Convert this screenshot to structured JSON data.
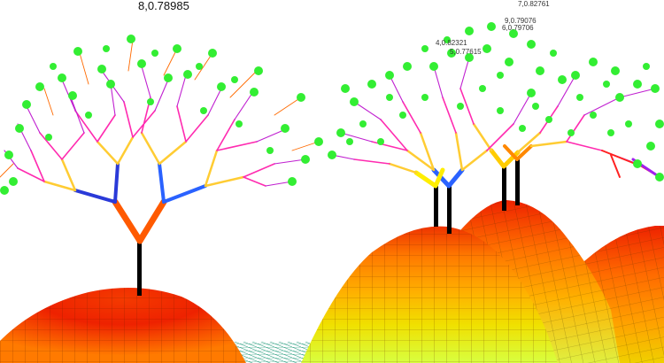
{
  "scene": {
    "title": "",
    "labels": [
      {
        "id": "tree-label-1",
        "text": "8,0.78985"
      },
      {
        "id": "tree-label-2",
        "text": "7,0.82761"
      },
      {
        "id": "tree-label-3",
        "text": "9,0.79076"
      },
      {
        "id": "tree-label-4",
        "text": "6,0.79706"
      },
      {
        "id": "tree-label-5",
        "text": "4,0.82321"
      },
      {
        "id": "tree-label-6",
        "text": "5,0.77615"
      }
    ],
    "colors": {
      "background": "#ffffff",
      "hill_peak": "#ee2200",
      "hill_mid": "#ffaa00",
      "hill_low": "#ddff33",
      "trunk": "#000000",
      "leaf": "#33ee33",
      "terrain_grid": "#00aa77"
    }
  }
}
